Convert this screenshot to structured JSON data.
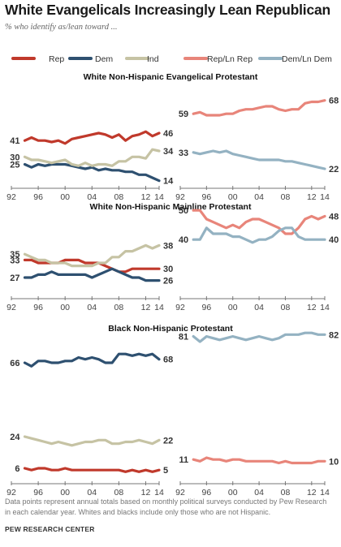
{
  "title": "White Evangelicals Increasingly Lean Republican",
  "subtitle": "% who identify as/lean toward ...",
  "legend": [
    {
      "label": "Rep",
      "color": "#c0392b"
    },
    {
      "label": "Dem",
      "color": "#2e5070"
    },
    {
      "label": "Ind",
      "color": "#c6c3a4"
    },
    {
      "label": "Rep/Ln Rep",
      "color": "#e8857a"
    },
    {
      "label": "Dem/Ln Dem",
      "color": "#94b2c2"
    }
  ],
  "footnote": "Data points represent annual totals based on monthly political surveys conducted by Pew Research in each calendar year. Whites and blacks include only those who are not Hispanic.",
  "source": "PEW RESEARCH CENTER",
  "chart_data": [
    {
      "type": "line",
      "group": "White Non-Hispanic Evangelical Protestant",
      "xlim": [
        1992,
        2014
      ],
      "x_ticks": [
        "92",
        "96",
        "00",
        "04",
        "08",
        "12",
        "14"
      ],
      "left_panel": {
        "x": [
          1994,
          1995,
          1996,
          1997,
          1998,
          1999,
          2000,
          2001,
          2002,
          2003,
          2004,
          2005,
          2006,
          2007,
          2008,
          2009,
          2010,
          2011,
          2012,
          2013,
          2014
        ],
        "series": [
          {
            "name": "Rep",
            "color": "#c0392b",
            "start_label": "41",
            "end_label": "46",
            "values": [
              41,
              43,
              41,
              41,
              40,
              41,
              39,
              42,
              43,
              44,
              45,
              46,
              45,
              43,
              45,
              41,
              44,
              45,
              47,
              44,
              46
            ]
          },
          {
            "name": "Dem",
            "color": "#2e5070",
            "start_label": "25",
            "end_label": "14",
            "values": [
              25,
              23,
              25,
              24,
              25,
              25,
              25,
              24,
              23,
              22,
              23,
              21,
              22,
              21,
              21,
              20,
              20,
              18,
              18,
              16,
              14
            ]
          },
          {
            "name": "Ind",
            "color": "#c6c3a4",
            "start_label": "30",
            "end_label": "34",
            "values": [
              30,
              28,
              28,
              27,
              26,
              27,
              28,
              25,
              24,
              26,
              24,
              25,
              25,
              24,
              27,
              27,
              30,
              30,
              29,
              35,
              34
            ]
          }
        ]
      },
      "right_panel": {
        "x": [
          1994,
          1995,
          1996,
          1997,
          1998,
          1999,
          2000,
          2001,
          2002,
          2003,
          2004,
          2005,
          2006,
          2007,
          2008,
          2009,
          2010,
          2011,
          2012,
          2013,
          2014
        ],
        "series": [
          {
            "name": "Rep/Ln Rep",
            "color": "#e8857a",
            "start_label": "59",
            "end_label": "68",
            "values": [
              59,
              60,
              58,
              58,
              58,
              59,
              59,
              61,
              62,
              62,
              63,
              64,
              64,
              62,
              61,
              62,
              62,
              66,
              67,
              67,
              68
            ]
          },
          {
            "name": "Dem/Ln Dem",
            "color": "#94b2c2",
            "start_label": "33",
            "end_label": "22",
            "values": [
              33,
              32,
              33,
              34,
              33,
              34,
              32,
              31,
              30,
              29,
              28,
              28,
              28,
              28,
              27,
              27,
              26,
              25,
              24,
              23,
              22
            ]
          }
        ]
      }
    },
    {
      "type": "line",
      "group": "White Non-Hispanic Mainline Protestant",
      "xlim": [
        1992,
        2014
      ],
      "x_ticks": [
        "92",
        "96",
        "00",
        "04",
        "08",
        "12",
        "14"
      ],
      "left_panel": {
        "x": [
          1994,
          1995,
          1996,
          1997,
          1998,
          1999,
          2000,
          2001,
          2002,
          2003,
          2004,
          2005,
          2006,
          2007,
          2008,
          2009,
          2010,
          2011,
          2012,
          2013,
          2014
        ],
        "series": [
          {
            "name": "Rep",
            "color": "#c0392b",
            "start_label": "33",
            "end_label": "30",
            "values": [
              33,
              33,
              32,
              32,
              32,
              32,
              33,
              33,
              33,
              32,
              32,
              32,
              31,
              30,
              29,
              29,
              30,
              30,
              30,
              30,
              30
            ]
          },
          {
            "name": "Dem",
            "color": "#2e5070",
            "start_label": "27",
            "end_label": "26",
            "values": [
              27,
              27,
              28,
              28,
              29,
              28,
              28,
              28,
              28,
              28,
              27,
              28,
              29,
              30,
              29,
              28,
              27,
              27,
              26,
              26,
              26
            ]
          },
          {
            "name": "Ind",
            "color": "#c6c3a4",
            "start_label": "35",
            "end_label": "38",
            "values": [
              35,
              34,
              33,
              33,
              32,
              32,
              32,
              31,
              31,
              31,
              31,
              32,
              32,
              34,
              34,
              36,
              36,
              37,
              38,
              37,
              38
            ]
          }
        ]
      },
      "right_panel": {
        "x": [
          1994,
          1995,
          1996,
          1997,
          1998,
          1999,
          2000,
          2001,
          2002,
          2003,
          2004,
          2005,
          2006,
          2007,
          2008,
          2009,
          2010,
          2011,
          2012,
          2013,
          2014
        ],
        "series": [
          {
            "name": "Rep/Ln Rep",
            "color": "#e8857a",
            "start_label": "50",
            "end_label": "48",
            "values": [
              50,
              50,
              47,
              46,
              45,
              44,
              45,
              44,
              46,
              47,
              47,
              46,
              45,
              44,
              42,
              42,
              44,
              47,
              48,
              47,
              48
            ]
          },
          {
            "name": "Dem/Ln Dem",
            "color": "#94b2c2",
            "start_label": "40",
            "end_label": "40",
            "values": [
              40,
              40,
              44,
              42,
              42,
              42,
              41,
              41,
              40,
              39,
              40,
              40,
              41,
              43,
              44,
              44,
              41,
              40,
              40,
              40,
              40
            ]
          }
        ]
      }
    },
    {
      "type": "line",
      "group": "Black Non-Hispanic Protestant",
      "xlim": [
        1992,
        2014
      ],
      "x_ticks": [
        "92",
        "96",
        "00",
        "04",
        "08",
        "12",
        "14"
      ],
      "left_panel": {
        "x": [
          1994,
          1995,
          1996,
          1997,
          1998,
          1999,
          2000,
          2001,
          2002,
          2003,
          2004,
          2005,
          2006,
          2007,
          2008,
          2009,
          2010,
          2011,
          2012,
          2013,
          2014
        ],
        "series": [
          {
            "name": "Dem",
            "color": "#2e5070",
            "start_label": "66",
            "end_label": "68",
            "values": [
              66,
              64,
              67,
              67,
              66,
              66,
              67,
              67,
              69,
              68,
              69,
              68,
              66,
              66,
              71,
              71,
              70,
              71,
              70,
              71,
              68
            ]
          },
          {
            "name": "Ind",
            "color": "#c6c3a4",
            "start_label": "24",
            "end_label": "22",
            "values": [
              24,
              23,
              22,
              21,
              20,
              21,
              20,
              19,
              20,
              21,
              21,
              22,
              22,
              20,
              20,
              21,
              21,
              22,
              21,
              20,
              22
            ]
          },
          {
            "name": "Rep",
            "color": "#c0392b",
            "start_label": "6",
            "end_label": "5",
            "values": [
              6,
              5,
              6,
              6,
              5,
              5,
              6,
              5,
              5,
              5,
              5,
              5,
              5,
              5,
              5,
              4,
              5,
              4,
              5,
              4,
              5
            ]
          }
        ]
      },
      "right_panel": {
        "x": [
          1994,
          1995,
          1996,
          1997,
          1998,
          1999,
          2000,
          2001,
          2002,
          2003,
          2004,
          2005,
          2006,
          2007,
          2008,
          2009,
          2010,
          2011,
          2012,
          2013,
          2014
        ],
        "series": [
          {
            "name": "Dem/Ln Dem",
            "color": "#94b2c2",
            "start_label": "81",
            "end_label": "82",
            "values": [
              81,
              78,
              81,
              80,
              79,
              80,
              81,
              80,
              79,
              80,
              81,
              80,
              79,
              80,
              82,
              82,
              82,
              83,
              83,
              82,
              82
            ]
          },
          {
            "name": "Rep/Ln Rep",
            "color": "#e8857a",
            "start_label": "11",
            "end_label": "10",
            "values": [
              11,
              10,
              12,
              11,
              11,
              10,
              11,
              11,
              10,
              10,
              10,
              10,
              10,
              9,
              10,
              9,
              9,
              9,
              9,
              10,
              10
            ]
          }
        ]
      }
    }
  ]
}
